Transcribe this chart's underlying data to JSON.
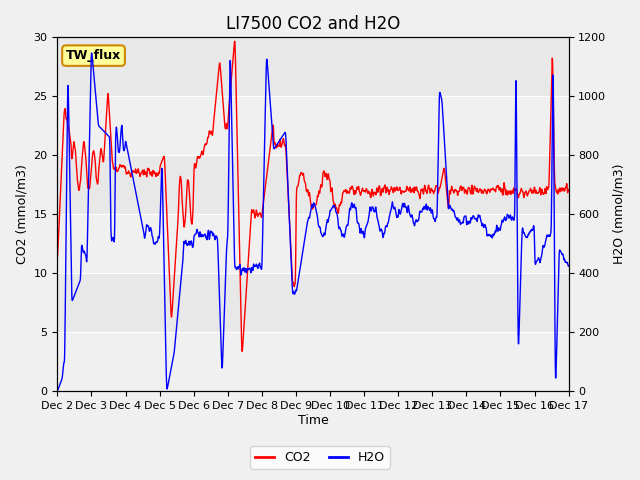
{
  "title": "LI7500 CO2 and H2O",
  "xlabel": "Time",
  "ylabel_left": "CO2 (mmol/m3)",
  "ylabel_right": "H2O (mmol/m3)",
  "co2_color": "#ff0000",
  "h2o_color": "#0000ff",
  "background_color": "#f0f0f0",
  "plot_bg_color": "#e8e8e8",
  "ylim_co2": [
    0,
    30
  ],
  "ylim_h2o": [
    0,
    1200
  ],
  "xtick_labels": [
    "Dec 2",
    "Dec 3",
    "Dec 4",
    "Dec 5",
    "Dec 6",
    "Dec 7",
    "Dec 8",
    "Dec 9",
    "Dec 10",
    "Dec 11",
    "Dec 12",
    "Dec 13",
    "Dec 14",
    "Dec 15",
    "Dec 16",
    "Dec 17"
  ],
  "legend_co2": "CO2",
  "legend_h2o": "H2O",
  "box_label": "TW_flux",
  "box_bg": "#ffff99",
  "box_border": "#cc8800",
  "title_fontsize": 12,
  "label_fontsize": 9,
  "tick_fontsize": 8,
  "legend_fontsize": 9
}
